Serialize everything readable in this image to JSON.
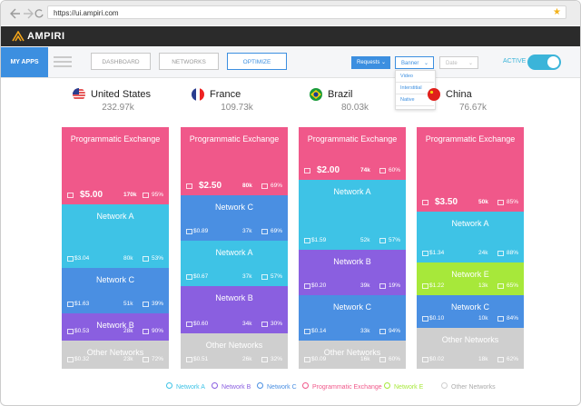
{
  "browser": {
    "url": "https://ui.ampiri.com"
  },
  "header": {
    "logo": "AMPIRI"
  },
  "nav": {
    "my_apps": "MY APPS",
    "buttons": [
      "DASHBOARD",
      "NETWORKS",
      "OPTIMIZE"
    ],
    "dropdowns": [
      "Requests",
      "Banner",
      "Date"
    ],
    "dropdown_options": [
      "Video",
      "Interstitial",
      "Native"
    ],
    "active_label": "ACTIVE"
  },
  "countries": [
    {
      "name": "United States",
      "total": "232.97k",
      "segments": [
        {
          "name": "Programmatic Exchange",
          "price": "$5.00",
          "count": "170k",
          "share": "95%"
        },
        {
          "name": "Network A",
          "price": "$3.04",
          "count": "80k",
          "share": "53%"
        },
        {
          "name": "Network C",
          "price": "$1.63",
          "count": "51k",
          "share": "39%"
        },
        {
          "name": "Network B",
          "price": "$0.53",
          "count": "28k",
          "share": "90%"
        },
        {
          "name": "Other Networks",
          "price": "$0.32",
          "count": "23k",
          "share": "72%"
        }
      ]
    },
    {
      "name": "France",
      "total": "109.73k",
      "segments": [
        {
          "name": "Programmatic Exchange",
          "price": "$2.50",
          "count": "80k",
          "share": "69%"
        },
        {
          "name": "Network C",
          "price": "$0.89",
          "count": "37k",
          "share": "69%"
        },
        {
          "name": "Network A",
          "price": "$0.67",
          "count": "37k",
          "share": "57%"
        },
        {
          "name": "Network B",
          "price": "$0.60",
          "count": "34k",
          "share": "30%"
        },
        {
          "name": "Other Networks",
          "price": "$0.51",
          "count": "26k",
          "share": "32%"
        }
      ]
    },
    {
      "name": "Brazil",
      "total": "80.03k",
      "segments": [
        {
          "name": "Programmatic Exchange",
          "price": "$2.00",
          "count": "74k",
          "share": "60%"
        },
        {
          "name": "Network A",
          "price": "$1.59",
          "count": "52k",
          "share": "57%"
        },
        {
          "name": "Network B",
          "price": "$0.20",
          "count": "39k",
          "share": "19%"
        },
        {
          "name": "Network C",
          "price": "$0.14",
          "count": "33k",
          "share": "94%"
        },
        {
          "name": "Other Networks",
          "price": "$0.09",
          "count": "16k",
          "share": "60%"
        }
      ]
    },
    {
      "name": "China",
      "total": "76.67k",
      "segments": [
        {
          "name": "Programmatic Exchange",
          "price": "$3.50",
          "count": "50k",
          "share": "85%"
        },
        {
          "name": "Network A",
          "price": "$1.34",
          "count": "24k",
          "share": "88%"
        },
        {
          "name": "Network E",
          "price": "$1.22",
          "count": "13k",
          "share": "65%"
        },
        {
          "name": "Network C",
          "price": "$0.10",
          "count": "10k",
          "share": "84%"
        },
        {
          "name": "Other Networks",
          "price": "$0.02",
          "count": "18k",
          "share": "62%"
        }
      ]
    }
  ],
  "legend": [
    {
      "name": "Network A",
      "color": "#3ec3e6"
    },
    {
      "name": "Network B",
      "color": "#8a5fe0"
    },
    {
      "name": "Network C",
      "color": "#4a8fe2"
    },
    {
      "name": "Programmatic Exchange",
      "color": "#f0588a"
    },
    {
      "name": "Network E",
      "color": "#a7e83a"
    },
    {
      "name": "Other Networks",
      "color": "#cfcfcf"
    }
  ]
}
